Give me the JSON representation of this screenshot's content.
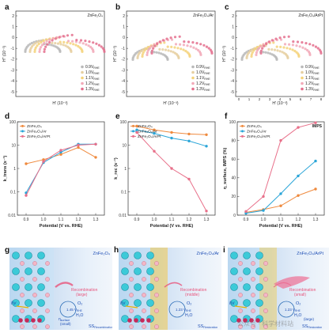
{
  "panels": {
    "a": {
      "letter": "a",
      "title": "ZnFe₂O₄",
      "ylabel": "H'' (10⁻³)",
      "xlabel": "H' (10⁻³)",
      "yticks": [
        "2",
        "1",
        "0",
        "-1",
        "-2",
        "-3",
        "-4",
        "-5"
      ],
      "legend": [
        "0.9V",
        "1.0V",
        "1.1V",
        "1.2V",
        "1.3V"
      ],
      "legend_sub": "RHE"
    },
    "b": {
      "letter": "b",
      "title": "ZnFe₂O₄/Ar",
      "ylabel": "H'' (10⁻³)",
      "xlabel": "H' (10⁻³)",
      "yticks": [
        "2",
        "1",
        "0",
        "-1",
        "-2",
        "-3",
        "-4",
        "-5"
      ],
      "legend": [
        "0.9V",
        "1.0V",
        "1.1V",
        "1.2V",
        "1.3V"
      ],
      "legend_sub": "RHE"
    },
    "c": {
      "letter": "c",
      "title": "ZnFe₂O₄/ArPt",
      "ylabel": "H'' (10⁻³)",
      "xlabel": "H' (10⁻³)",
      "yticks": [
        "2",
        "1",
        "0",
        "-1",
        "-2",
        "-3",
        "-4",
        "-5"
      ],
      "xticks": [
        "0",
        "1",
        "2",
        "3",
        "4",
        "5",
        "6",
        "7",
        "8"
      ],
      "legend": [
        "0.9V",
        "1.0V",
        "1.1V",
        "1.2V",
        "1.3V"
      ],
      "legend_sub": "RHE"
    },
    "d": {
      "letter": "d",
      "ylabel": "k_trans (s⁻¹)",
      "xlabel": "Potential (V vs. RHE)"
    },
    "e": {
      "letter": "e",
      "ylabel": "k_rec (s⁻¹)",
      "xlabel": "Potential (V vs. RHE)"
    },
    "f": {
      "letter": "f",
      "ylabel": "η_surface, IMPS (%)",
      "xlabel": "Potential (V vs. RHE)",
      "tag": "IMPS"
    },
    "g": {
      "letter": "g",
      "title": "ZnFe₂O₄",
      "recomb": "Recombination",
      "recomb_level": "(large)",
      "hv": "hv",
      "o2": "O₂",
      "v": "1.45 V",
      "vsub": "RHE",
      "h2o": "H₂O",
      "eta": "η",
      "eta_sub": "surface",
      "eta_tag": "(small)",
      "ss": "SS",
      "ss_sub": "Recombination"
    },
    "h": {
      "letter": "h",
      "title": "ZnFe₂O₄/Ar",
      "recomb": "Recombination",
      "recomb_level": "(middle)",
      "hv": "hv",
      "o2": "O₂",
      "v": "1.23 V",
      "vsub": "RHE",
      "h2o": "H₂O",
      "ss": "SS",
      "ss_sub": "Restoration"
    },
    "i": {
      "letter": "i",
      "title": "ZnFe₂O₄/ArPt",
      "recomb": "Recombination",
      "recomb_level": "(small)",
      "hv": "hv",
      "o2": "O₂",
      "v": "1.23 V",
      "vsub": "RHE",
      "h2o": "H₂O",
      "eta_tag": "(large)",
      "ss": "SS",
      "ss_sub": "Restoration"
    }
  },
  "watermark": "公众号 · 科学材料站",
  "chart_data": [
    {
      "type": "line",
      "panel": "d",
      "yscale": "log",
      "xlabel": "Potential (V vs. RHE)",
      "ylabel": "k_trans (s⁻¹)",
      "x": [
        0.9,
        1.0,
        1.1,
        1.2,
        1.3
      ],
      "xticks": [
        "0.9",
        "1.0",
        "1.1",
        "1.2",
        "1.3"
      ],
      "ylim": [
        0.01,
        100
      ],
      "yticks": [
        "100",
        "10",
        "1",
        "0.1",
        "0.01"
      ],
      "series": [
        {
          "name": "ZnFe₂O₄",
          "color": "#ef8a3e",
          "values": [
            1.6,
            2.4,
            4.0,
            8.0,
            3.0
          ]
        },
        {
          "name": "ZnFe₂O₄/Ar",
          "color": "#2aa5d8",
          "values": [
            0.09,
            1.8,
            5.0,
            11.0,
            11.0
          ]
        },
        {
          "name": "ZnFe₂O₄/ArPt",
          "color": "#e8708a",
          "values": [
            0.07,
            2.0,
            6.0,
            10.0,
            11.0
          ]
        }
      ]
    },
    {
      "type": "line",
      "panel": "e",
      "yscale": "log",
      "xlabel": "Potential (V vs. RHE)",
      "ylabel": "k_rec (s⁻¹)",
      "x": [
        0.9,
        1.0,
        1.1,
        1.2,
        1.3
      ],
      "xticks": [
        "0.9",
        "1.0",
        "1.1",
        "1.2",
        "1.3"
      ],
      "ylim": [
        0.01,
        100
      ],
      "yticks": [
        "100",
        "10",
        "1",
        "0.1",
        "0.01"
      ],
      "series": [
        {
          "name": "ZnFe₂O₄",
          "color": "#ef8a3e",
          "values": [
            65,
            45,
            35,
            30,
            28
          ]
        },
        {
          "name": "ZnFe₂O₄/Ar",
          "color": "#2aa5d8",
          "values": [
            45,
            32,
            20,
            15,
            9
          ]
        },
        {
          "name": "ZnFe₂O₄/ArPt",
          "color": "#e8708a",
          "values": [
            35,
            5.5,
            1.0,
            0.35,
            0.015
          ]
        }
      ]
    },
    {
      "type": "line",
      "panel": "f",
      "xlabel": "Potential (V vs. RHE)",
      "ylabel": "η_surface, IMPS (%)",
      "x": [
        0.9,
        1.0,
        1.1,
        1.2,
        1.3
      ],
      "xticks": [
        "0.9",
        "1.0",
        "1.1",
        "1.2",
        "1.3"
      ],
      "ylim": [
        0,
        100
      ],
      "yticks": [
        "100",
        "80",
        "60",
        "40",
        "20",
        "0"
      ],
      "series": [
        {
          "name": "ZnFe₂O₄",
          "color": "#ef8a3e",
          "values": [
            3,
            6,
            10,
            21,
            28
          ]
        },
        {
          "name": "ZnFe₂O₄/Ar",
          "color": "#2aa5d8",
          "values": [
            2,
            5,
            23,
            42,
            58
          ]
        },
        {
          "name": "ZnFe₂O₄/ArPt",
          "color": "#e8708a",
          "values": [
            4,
            20,
            80,
            94,
            99
          ]
        }
      ]
    }
  ],
  "colors": {
    "v09": "#b8b8b8",
    "v10": "#e6cfa0",
    "v11": "#f4d27a",
    "v12": "#f2a9b8",
    "v13": "#e46f8d"
  }
}
